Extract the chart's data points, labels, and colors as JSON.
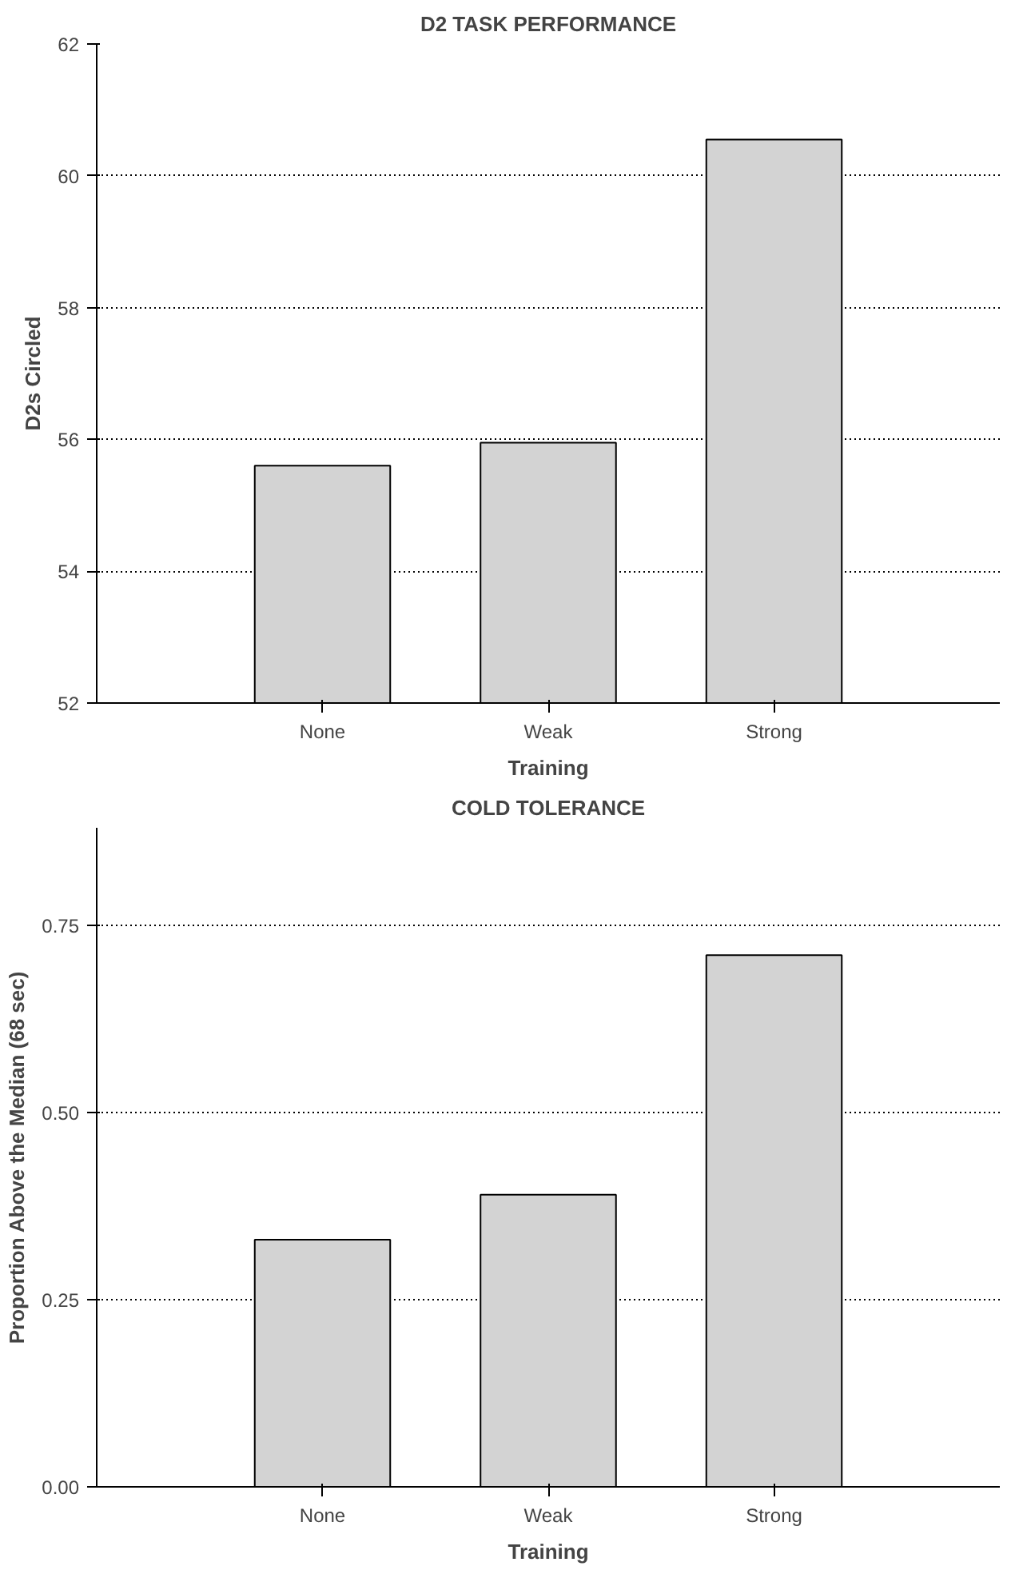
{
  "chart_data": [
    {
      "type": "bar",
      "title": "D2 TASK PERFORMANCE",
      "xlabel": "Training",
      "ylabel": "D2s Circled",
      "categories": [
        "None",
        "Weak",
        "Strong"
      ],
      "values": [
        55.6,
        55.95,
        60.55
      ],
      "color": "#d3d3d3",
      "ylim": [
        52,
        62
      ],
      "yticks": [
        52,
        54,
        56,
        58,
        60,
        62
      ],
      "grid": "y"
    },
    {
      "type": "bar",
      "title": "COLD TOLERANCE",
      "xlabel": "Training",
      "ylabel": "Proportion Above the Median (68 sec)",
      "categories": [
        "None",
        "Weak",
        "Strong"
      ],
      "values": [
        0.33,
        0.39,
        0.71
      ],
      "color": "#d3d3d3",
      "ylim": [
        0,
        0.88
      ],
      "yticks": [
        {
          "value": 0,
          "label": "0.00"
        },
        {
          "value": 0.25,
          "label": "0.25"
        },
        {
          "value": 0.5,
          "label": "0.50"
        },
        {
          "value": 0.75,
          "label": "0.75"
        }
      ],
      "grid": "y"
    }
  ]
}
